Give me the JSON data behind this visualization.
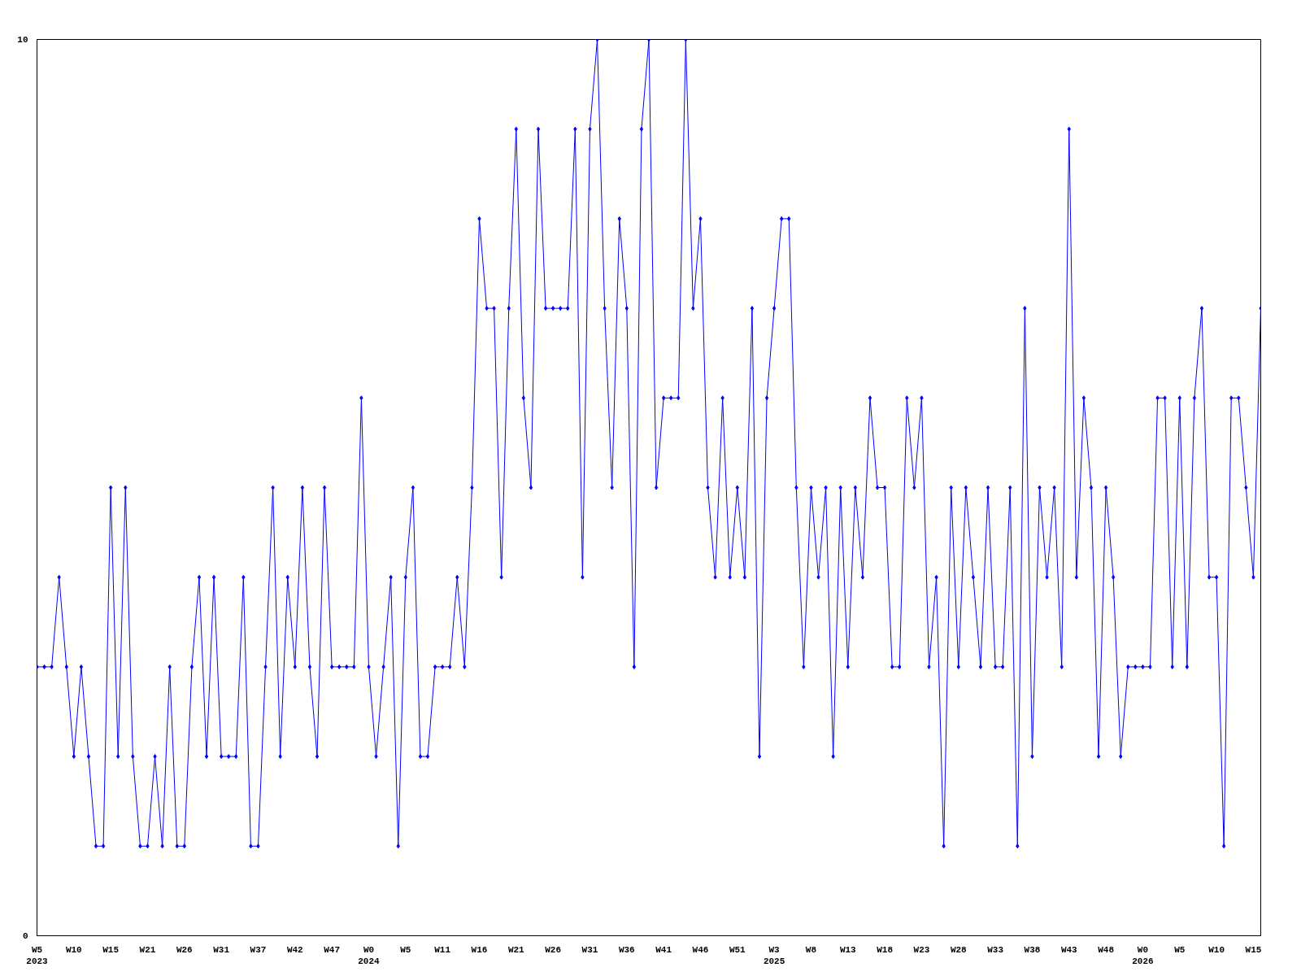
{
  "chart_data": {
    "type": "line",
    "color": "#0000ff",
    "marker": "diamond",
    "grid": false,
    "categories": [
      "W5\n2023",
      null,
      null,
      null,
      null,
      "W10",
      null,
      null,
      null,
      null,
      "W15",
      null,
      null,
      null,
      null,
      "W21",
      null,
      null,
      null,
      null,
      "W26",
      null,
      null,
      null,
      null,
      "W31",
      null,
      null,
      null,
      null,
      "W37",
      null,
      null,
      null,
      null,
      "W42",
      null,
      null,
      null,
      null,
      "W47",
      null,
      null,
      null,
      null,
      "W0\n2024",
      null,
      null,
      null,
      null,
      "W5",
      null,
      null,
      null,
      null,
      "W11",
      null,
      null,
      null,
      null,
      "W16",
      null,
      null,
      null,
      null,
      "W21",
      null,
      null,
      null,
      null,
      "W26",
      null,
      null,
      null,
      null,
      "W31",
      null,
      null,
      null,
      null,
      "W36",
      null,
      null,
      null,
      null,
      "W41",
      null,
      null,
      null,
      null,
      "W46",
      null,
      null,
      null,
      null,
      "W51",
      null,
      null,
      null,
      null,
      "W3\n2025",
      null,
      null,
      null,
      null,
      "W8",
      null,
      null,
      null,
      null,
      "W13",
      null,
      null,
      null,
      null,
      "W18",
      null,
      null,
      null,
      null,
      "W23",
      null,
      null,
      null,
      null,
      "W28",
      null,
      null,
      null,
      null,
      "W33",
      null,
      null,
      null,
      null,
      "W38",
      null,
      null,
      null,
      null,
      "W43",
      null,
      null,
      null,
      null,
      "W48",
      null,
      null,
      null,
      null,
      "W0\n2026",
      null,
      null,
      null,
      null,
      "W5",
      null,
      null,
      null,
      null,
      "W10",
      null,
      null,
      null,
      null,
      "W15",
      null
    ],
    "values": [
      3,
      3,
      3,
      4,
      3,
      2,
      3,
      2,
      1,
      1,
      5,
      2,
      5,
      2,
      1,
      1,
      2,
      1,
      3,
      1,
      1,
      3,
      4,
      2,
      4,
      2,
      2,
      2,
      4,
      1,
      1,
      3,
      5,
      2,
      4,
      3,
      5,
      3,
      2,
      5,
      3,
      3,
      3,
      3,
      6,
      3,
      2,
      3,
      4,
      1,
      4,
      5,
      2,
      2,
      3,
      3,
      3,
      4,
      3,
      5,
      8,
      7,
      7,
      4,
      7,
      9,
      6,
      5,
      9,
      7,
      7,
      7,
      7,
      9,
      4,
      9,
      10,
      7,
      5,
      8,
      7,
      3,
      9,
      10,
      5,
      6,
      6,
      6,
      10,
      7,
      8,
      5,
      4,
      6,
      4,
      5,
      4,
      7,
      2,
      6,
      7,
      8,
      8,
      5,
      3,
      5,
      4,
      5,
      2,
      5,
      3,
      5,
      4,
      6,
      5,
      5,
      3,
      3,
      6,
      5,
      6,
      3,
      4,
      1,
      5,
      3,
      5,
      4,
      3,
      5,
      3,
      3,
      5,
      1,
      7,
      2,
      5,
      4,
      5,
      3,
      9,
      4,
      6,
      5,
      2,
      5,
      4,
      2,
      3,
      3,
      3,
      3,
      6,
      6,
      3,
      6,
      3,
      6,
      7,
      4,
      4,
      1,
      6,
      6,
      5,
      4,
      7
    ],
    "ylim": [
      0,
      10
    ],
    "yticks": [
      0,
      10
    ]
  }
}
